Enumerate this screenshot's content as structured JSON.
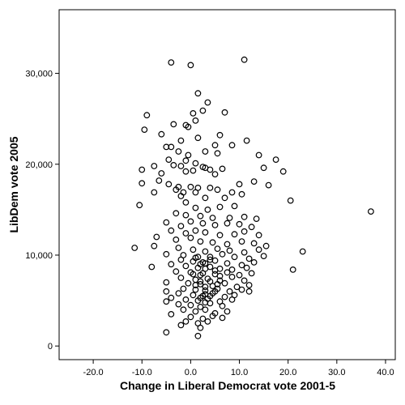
{
  "chart_data": {
    "type": "scatter",
    "title": "",
    "xlabel": "Change in Liberal Democrat vote 2001-5",
    "ylabel": "LibDem vote 2005",
    "xlim": [
      -27,
      42
    ],
    "ylim": [
      -1500,
      37000
    ],
    "x_ticks": [
      -20,
      -10,
      0,
      10,
      20,
      30,
      40
    ],
    "x_tick_labels": [
      "-20.0",
      "-10.0",
      "0.0",
      "10.0",
      "20.0",
      "30.0",
      "40.0"
    ],
    "y_ticks": [
      0,
      10000,
      20000,
      30000
    ],
    "y_tick_labels": [
      "0",
      "10,000",
      "20,000",
      "30,000"
    ],
    "grid": false,
    "marker": "open-circle",
    "points": [
      [
        -4,
        31200
      ],
      [
        0,
        30900
      ],
      [
        11,
        31500
      ],
      [
        1.5,
        27800
      ],
      [
        3.5,
        26800
      ],
      [
        -9,
        25400
      ],
      [
        -9.5,
        23800
      ],
      [
        -6,
        23300
      ],
      [
        -3.5,
        24400
      ],
      [
        -1,
        24300
      ],
      [
        0.5,
        25600
      ],
      [
        2.5,
        25900
      ],
      [
        7,
        25700
      ],
      [
        1,
        24800
      ],
      [
        -0.5,
        24100
      ],
      [
        6,
        23200
      ],
      [
        -2,
        22600
      ],
      [
        1.5,
        22900
      ],
      [
        5,
        22100
      ],
      [
        8.5,
        22100
      ],
      [
        11.5,
        22600
      ],
      [
        -5,
        21900
      ],
      [
        -4,
        21900
      ],
      [
        -2.5,
        21400
      ],
      [
        -0.5,
        21000
      ],
      [
        3,
        21400
      ],
      [
        5.5,
        21200
      ],
      [
        14,
        21000
      ],
      [
        17.5,
        20500
      ],
      [
        -4.5,
        20500
      ],
      [
        -3.5,
        19900
      ],
      [
        -2,
        19800
      ],
      [
        -1,
        20400
      ],
      [
        1,
        20100
      ],
      [
        2.5,
        19700
      ],
      [
        4,
        19400
      ],
      [
        6.5,
        19500
      ],
      [
        15,
        19600
      ],
      [
        19,
        19200
      ],
      [
        -10,
        19400
      ],
      [
        -7.5,
        19800
      ],
      [
        -6,
        19000
      ],
      [
        -1,
        19200
      ],
      [
        0.5,
        19300
      ],
      [
        3,
        19600
      ],
      [
        5,
        18900
      ],
      [
        13,
        18100
      ],
      [
        -10,
        17900
      ],
      [
        -6.5,
        18200
      ],
      [
        -4.5,
        17800
      ],
      [
        -2.5,
        17500
      ],
      [
        0,
        17500
      ],
      [
        1.5,
        17400
      ],
      [
        4,
        17400
      ],
      [
        10,
        17800
      ],
      [
        16,
        17700
      ],
      [
        -3,
        17200
      ],
      [
        -1.5,
        16900
      ],
      [
        1,
        16900
      ],
      [
        5.5,
        17200
      ],
      [
        8.5,
        16900
      ],
      [
        -7.5,
        16900
      ],
      [
        -2,
        16500
      ],
      [
        3,
        16300
      ],
      [
        7,
        16300
      ],
      [
        10.5,
        16700
      ],
      [
        20.5,
        16000
      ],
      [
        37,
        14800
      ],
      [
        -10.5,
        15500
      ],
      [
        -1,
        15800
      ],
      [
        1,
        15200
      ],
      [
        3.5,
        15000
      ],
      [
        6,
        15300
      ],
      [
        9,
        15400
      ],
      [
        -3,
        14600
      ],
      [
        -1,
        14400
      ],
      [
        2,
        14300
      ],
      [
        4.5,
        14100
      ],
      [
        8,
        14100
      ],
      [
        11,
        14200
      ],
      [
        13.5,
        14000
      ],
      [
        -5,
        13600
      ],
      [
        -2,
        13200
      ],
      [
        0,
        13700
      ],
      [
        2.5,
        13500
      ],
      [
        5,
        13300
      ],
      [
        7.5,
        13500
      ],
      [
        10,
        13400
      ],
      [
        12.5,
        13100
      ],
      [
        -4,
        12700
      ],
      [
        -1,
        12400
      ],
      [
        1,
        12700
      ],
      [
        3,
        12500
      ],
      [
        6,
        12200
      ],
      [
        9,
        12300
      ],
      [
        11,
        12600
      ],
      [
        14,
        12200
      ],
      [
        -7,
        12000
      ],
      [
        -3,
        11700
      ],
      [
        0,
        11900
      ],
      [
        2,
        11500
      ],
      [
        4.5,
        11400
      ],
      [
        7.5,
        11200
      ],
      [
        10.5,
        11500
      ],
      [
        13,
        11300
      ],
      [
        15.5,
        11000
      ],
      [
        -11.5,
        10800
      ],
      [
        -7.5,
        11000
      ],
      [
        -2.5,
        10800
      ],
      [
        0.5,
        10600
      ],
      [
        3,
        10400
      ],
      [
        5.5,
        10700
      ],
      [
        8,
        10500
      ],
      [
        11,
        10300
      ],
      [
        14,
        10600
      ],
      [
        23,
        10400
      ],
      [
        -5,
        10100
      ],
      [
        -1.5,
        10000
      ],
      [
        1.5,
        9800
      ],
      [
        4,
        9800
      ],
      [
        6.5,
        10100
      ],
      [
        9,
        9800
      ],
      [
        12,
        9600
      ],
      [
        15,
        9900
      ],
      [
        -2,
        9500
      ],
      [
        0.5,
        9300
      ],
      [
        2.5,
        9200
      ],
      [
        5,
        9400
      ],
      [
        7.5,
        9100
      ],
      [
        10.5,
        8900
      ],
      [
        13,
        9200
      ],
      [
        -4,
        9000
      ],
      [
        -1,
        8800
      ],
      [
        1.5,
        8600
      ],
      [
        4,
        8700
      ],
      [
        6,
        8500
      ],
      [
        8.5,
        8400
      ],
      [
        11.5,
        8600
      ],
      [
        21,
        8400
      ],
      [
        -8,
        8700
      ],
      [
        -3,
        8200
      ],
      [
        0,
        8100
      ],
      [
        2.5,
        8000
      ],
      [
        5,
        7900
      ],
      [
        7.5,
        8100
      ],
      [
        10,
        7800
      ],
      [
        12.5,
        8000
      ],
      [
        -2,
        7500
      ],
      [
        1,
        7300
      ],
      [
        3.5,
        7400
      ],
      [
        6,
        7200
      ],
      [
        8.5,
        7600
      ],
      [
        11,
        7200
      ],
      [
        -5,
        7000
      ],
      [
        -0.5,
        6900
      ],
      [
        2,
        6800
      ],
      [
        4.5,
        6600
      ],
      [
        7,
        6900
      ],
      [
        9.5,
        6500
      ],
      [
        12,
        6700
      ],
      [
        -1.5,
        6300
      ],
      [
        1,
        6200
      ],
      [
        3,
        6100
      ],
      [
        5.5,
        6300
      ],
      [
        8,
        6000
      ],
      [
        10.5,
        6200
      ],
      [
        -5,
        6000
      ],
      [
        -2.5,
        5800
      ],
      [
        0.5,
        5600
      ],
      [
        2.5,
        5500
      ],
      [
        4.5,
        5800
      ],
      [
        7,
        5400
      ],
      [
        9,
        5600
      ],
      [
        12,
        6000
      ],
      [
        -4,
        5300
      ],
      [
        -1,
        5100
      ],
      [
        1.5,
        5000
      ],
      [
        3.5,
        5200
      ],
      [
        6,
        4900
      ],
      [
        8.5,
        5100
      ],
      [
        -2.5,
        4600
      ],
      [
        0,
        4500
      ],
      [
        2,
        4300
      ],
      [
        4,
        4700
      ],
      [
        6.5,
        4400
      ],
      [
        -5,
        4900
      ],
      [
        -1.5,
        4000
      ],
      [
        1,
        3800
      ],
      [
        3,
        4000
      ],
      [
        5,
        3600
      ],
      [
        7.5,
        3800
      ],
      [
        -4,
        3500
      ],
      [
        0,
        3200
      ],
      [
        2.5,
        3000
      ],
      [
        4.5,
        3300
      ],
      [
        6.5,
        3100
      ],
      [
        -1,
        2700
      ],
      [
        1.5,
        2500
      ],
      [
        3.5,
        2700
      ],
      [
        -2,
        2300
      ],
      [
        2,
        2000
      ],
      [
        -5,
        1500
      ],
      [
        1.5,
        1100
      ],
      [
        1,
        9700
      ],
      [
        3,
        9100
      ],
      [
        2,
        7800
      ],
      [
        4,
        7100
      ],
      [
        3,
        6500
      ],
      [
        5,
        6000
      ],
      [
        2,
        5300
      ],
      [
        3,
        4800
      ],
      [
        4,
        5500
      ],
      [
        2,
        7100
      ],
      [
        5,
        8300
      ],
      [
        1,
        6700
      ],
      [
        3,
        8500
      ],
      [
        4,
        9500
      ],
      [
        6,
        7700
      ],
      [
        2,
        9000
      ],
      [
        3,
        5700
      ],
      [
        0.5,
        7900
      ],
      [
        5.5,
        6800
      ]
    ]
  }
}
